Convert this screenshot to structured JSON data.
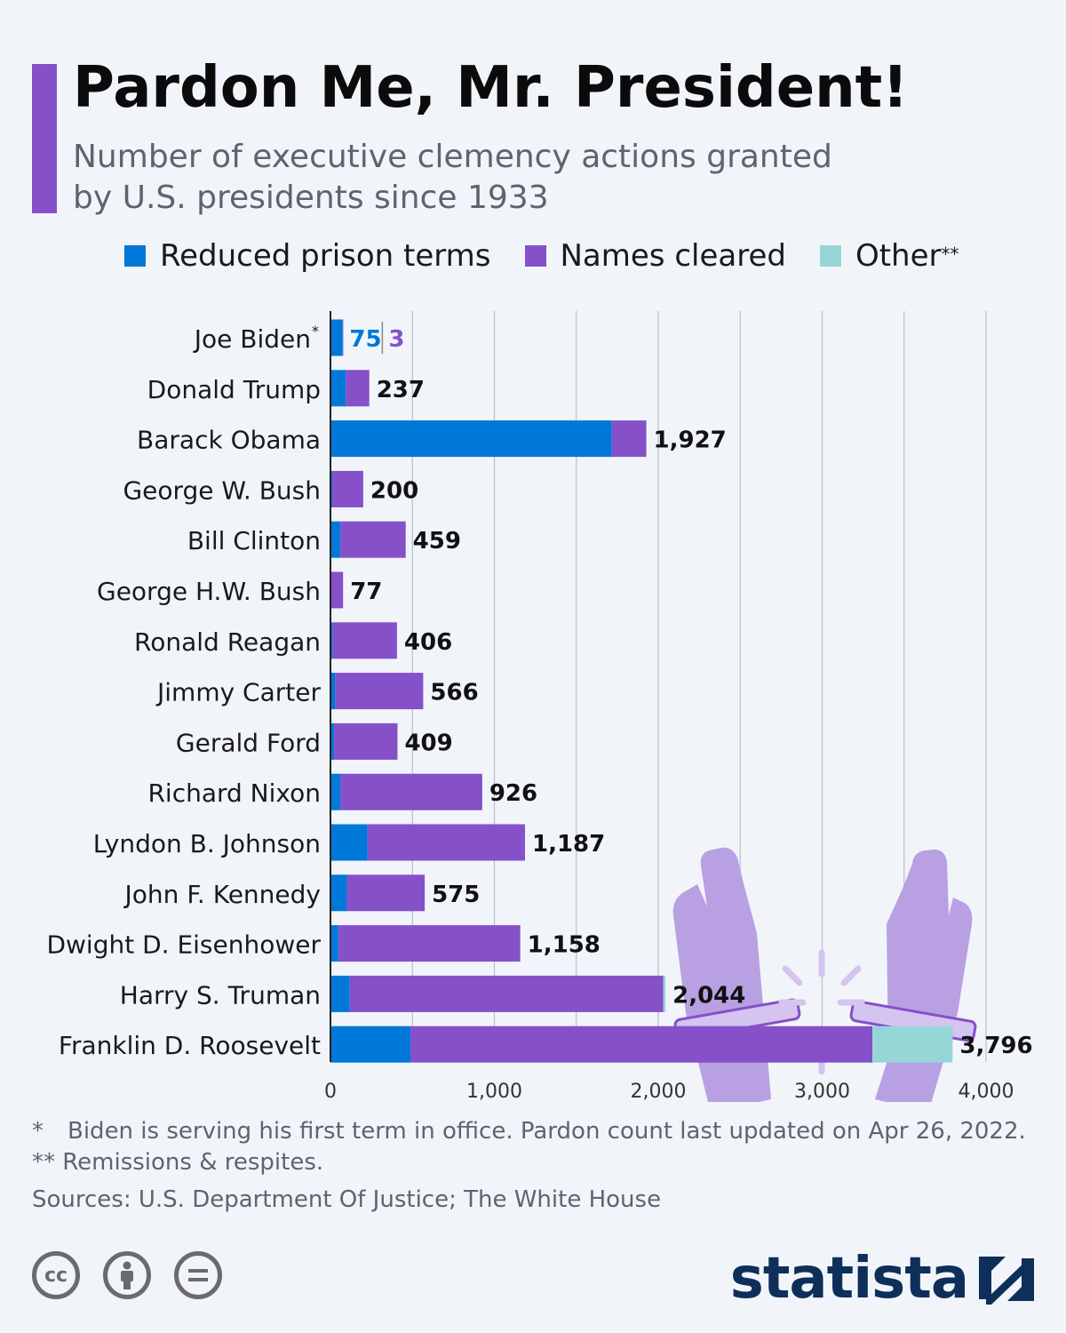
{
  "header": {
    "title": "Pardon Me, Mr. President!",
    "subtitle": "Number of executive clemency actions granted by U.S. presidents since 1933"
  },
  "legend": [
    {
      "label": "Reduced prison terms",
      "sup": "",
      "color": "#0078d7"
    },
    {
      "label": "Names cleared",
      "sup": "",
      "color": "#8650c9"
    },
    {
      "label": "Other",
      "sup": "**",
      "color": "#96d6d6"
    }
  ],
  "chart_data": {
    "type": "bar",
    "orientation": "horizontal",
    "stacked": true,
    "categories": [
      "Joe Biden",
      "Donald Trump",
      "Barack Obama",
      "George W. Bush",
      "Bill Clinton",
      "George H.W. Bush",
      "Ronald Reagan",
      "Jimmy Carter",
      "Gerald Ford",
      "Richard Nixon",
      "Lyndon B. Johnson",
      "John F. Kennedy",
      "Dwight D. Eisenhower",
      "Harry S. Truman",
      "Franklin D. Roosevelt"
    ],
    "category_markers": [
      "*",
      "",
      "",
      "",
      "",
      "",
      "",
      "",
      "",
      "",
      "",
      "",
      "",
      "",
      ""
    ],
    "series": [
      {
        "name": "Reduced prison terms",
        "color": "#0078d7",
        "values": [
          75,
          94,
          1715,
          11,
          61,
          3,
          13,
          29,
          22,
          60,
          226,
          100,
          47,
          118,
          488
        ]
      },
      {
        "name": "Names cleared",
        "color": "#8650c9",
        "values": [
          3,
          143,
          212,
          189,
          398,
          74,
          393,
          537,
          387,
          866,
          961,
          475,
          1111,
          1913,
          2819
        ]
      },
      {
        "name": "Other",
        "color": "#96d6d6",
        "values": [
          0,
          0,
          0,
          0,
          0,
          0,
          0,
          0,
          0,
          0,
          0,
          0,
          0,
          13,
          489
        ]
      }
    ],
    "totals": [
      "",
      "237",
      "1,927",
      "200",
      "459",
      "77",
      "406",
      "566",
      "409",
      "926",
      "1,187",
      "575",
      "1,158",
      "2,044",
      "3,796"
    ],
    "split_labels": {
      "index": 0,
      "first": "75",
      "second": "3"
    },
    "x_ticks": [
      0,
      1000,
      2000,
      3000,
      4000
    ],
    "x_tick_labels": [
      "0",
      "1,000",
      "2,000",
      "3,000",
      "4,000"
    ],
    "xlim": [
      0,
      4000
    ],
    "grid": true,
    "legend_position": "top"
  },
  "footnotes": [
    {
      "marker": "*",
      "text": "Biden is serving his first term in office. Pardon count last updated on Apr 26, 2022."
    },
    {
      "marker": "**",
      "text": "Remissions & respites."
    }
  ],
  "source": "Sources: U.S. Department Of Justice; The White House",
  "license": {
    "icons": [
      "cc-icon",
      "attribution-icon",
      "no-derivatives-icon"
    ],
    "cc_text": "cc"
  },
  "brand": {
    "name": "statista"
  }
}
